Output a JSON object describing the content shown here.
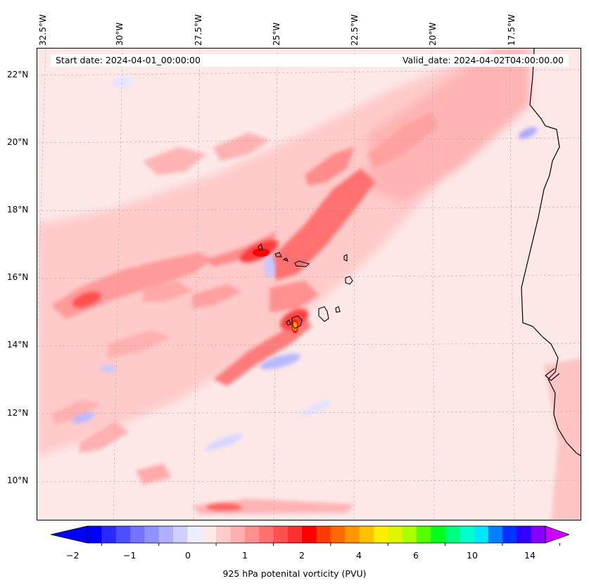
{
  "header": {
    "start_date": "Start date: 2024-04-01_00:00:00",
    "valid_date": "Valid_date: 2024-04-02T04:00:00.00"
  },
  "map": {
    "longitude_labels": [
      "32.5°W",
      "30°W",
      "27.5°W",
      "25°W",
      "22.5°W",
      "20°W",
      "17.5°W"
    ],
    "latitude_labels": [
      "22°N",
      "20°N",
      "18°N",
      "16°N",
      "14°N",
      "12°N",
      "10°N"
    ],
    "field": "925 hPa potential vorticity",
    "coastline_color": "#000000"
  },
  "colorbar": {
    "label": "925 hPa potenital vorticity (PVU)",
    "tick_labels": [
      "−2",
      "−1",
      "0",
      "1",
      "2",
      "4",
      "6",
      "10",
      "14"
    ],
    "colors": [
      "#0000ff",
      "#2a2aff",
      "#4f4fff",
      "#7373ff",
      "#9191ff",
      "#b0b0ff",
      "#d0d0ff",
      "#eeeeff",
      "#ffe8e8",
      "#ffcccc",
      "#ffb0b0",
      "#ff9090",
      "#ff7070",
      "#ff5050",
      "#ff3030",
      "#ff0000",
      "#ff3c00",
      "#ff6a00",
      "#ff9600",
      "#ffc200",
      "#ffee00",
      "#ddf500",
      "#aaff00",
      "#55ff00",
      "#00ff1a",
      "#00ff80",
      "#00ffcc",
      "#00e6ff",
      "#0080ff",
      "#0033ff",
      "#3300ff",
      "#8800ff"
    ],
    "extend_low_color": "#0000ff",
    "extend_high_color": "#cc00ff"
  }
}
